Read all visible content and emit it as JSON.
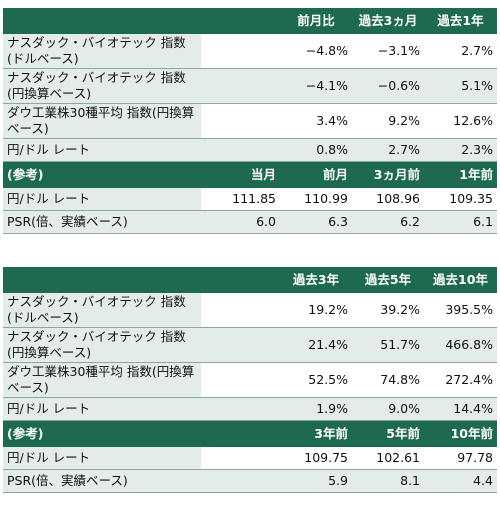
{
  "table1": {
    "headers": [
      "",
      "前月比",
      "過去3ヵ月",
      "過去1年"
    ],
    "rows": [
      {
        "label": "ナスダック・バイオテック 指数(ドルベース)",
        "values": [
          "−4.8%",
          "−3.1%",
          "2.7%"
        ]
      },
      {
        "label": "ナスダック・バイオテック 指数(円換算ベース)",
        "values": [
          "−4.1%",
          "−0.6%",
          "5.1%"
        ]
      },
      {
        "label": "ダウ工業株30種平均 指数(円換算ベース)",
        "values": [
          "3.4%",
          "9.2%",
          "12.6%"
        ]
      },
      {
        "label": "円/ドル レート",
        "values": [
          "0.8%",
          "2.7%",
          "2.3%"
        ]
      }
    ],
    "ref_header": [
      "(参考)",
      "当月",
      "前月",
      "3ヵ月前",
      "1年前"
    ],
    "ref_rows": [
      {
        "label": "円/ドル レート",
        "values": [
          "111.85",
          "110.99",
          "108.96",
          "109.35"
        ]
      },
      {
        "label": "PSR(倍、実績ベース)",
        "values": [
          "6.0",
          "6.3",
          "6.2",
          "6.1"
        ]
      }
    ]
  },
  "table2": {
    "headers": [
      "",
      "過去3年",
      "過去5年",
      "過去10年"
    ],
    "rows": [
      {
        "label": "ナスダック・バイオテック 指数(ドルベース)",
        "values": [
          "19.2%",
          "39.2%",
          "395.5%"
        ]
      },
      {
        "label": "ナスダック・バイオテック 指数(円換算ベース)",
        "values": [
          "21.4%",
          "51.7%",
          "466.8%"
        ]
      },
      {
        "label": "ダウ工業株30種平均 指数(円換算ベース)",
        "values": [
          "52.5%",
          "74.8%",
          "272.4%"
        ]
      },
      {
        "label": "円/ドル レート",
        "values": [
          "1.9%",
          "9.0%",
          "14.4%"
        ]
      }
    ],
    "ref_header": [
      "(参考)",
      "3年前",
      "5年前",
      "10年前"
    ],
    "ref_rows": [
      {
        "label": "円/ドル レート",
        "values": [
          "109.75",
          "102.61",
          "97.78"
        ]
      },
      {
        "label": "PSR(倍、実績ベース)",
        "values": [
          "5.9",
          "8.1",
          "4.4"
        ]
      }
    ]
  }
}
